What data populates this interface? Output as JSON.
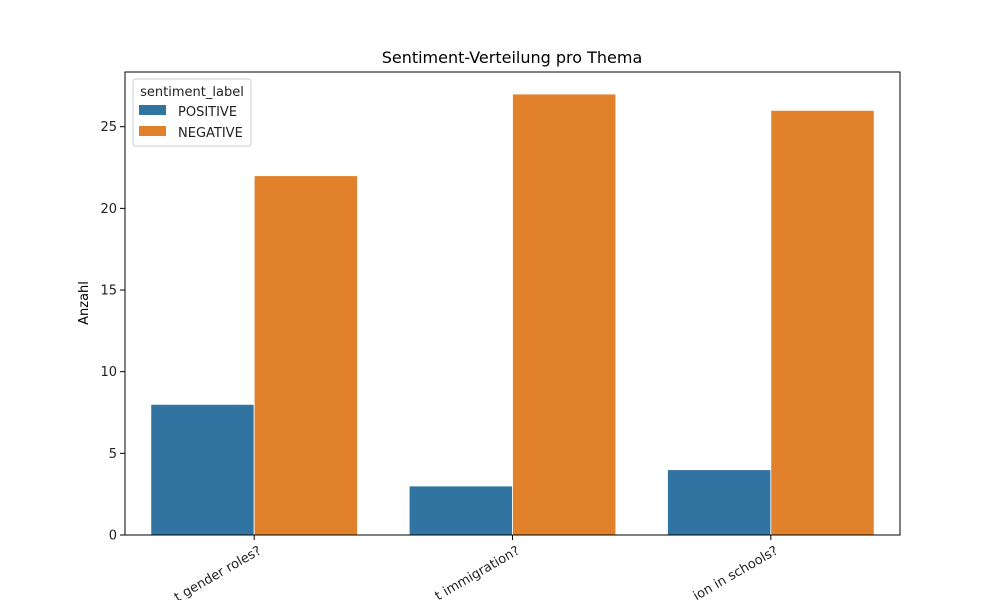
{
  "chart_data": {
    "type": "bar",
    "title": "Sentiment-Verteilung pro Thema",
    "xlabel": "",
    "ylabel": "Anzahl",
    "categories": [
      "…t gender roles?",
      "…t immigration?",
      "…ion in schools?"
    ],
    "series": [
      {
        "name": "POSITIVE",
        "color": "#3274a1",
        "values": [
          8,
          3,
          4
        ]
      },
      {
        "name": "NEGATIVE",
        "color": "#e1812c",
        "values": [
          22,
          27,
          26
        ]
      }
    ],
    "ylim": [
      0,
      28.35
    ],
    "yticks": [
      0,
      5,
      10,
      15,
      20,
      25
    ],
    "legend": {
      "title": "sentiment_label",
      "placement": "top-left"
    },
    "grid": false
  }
}
